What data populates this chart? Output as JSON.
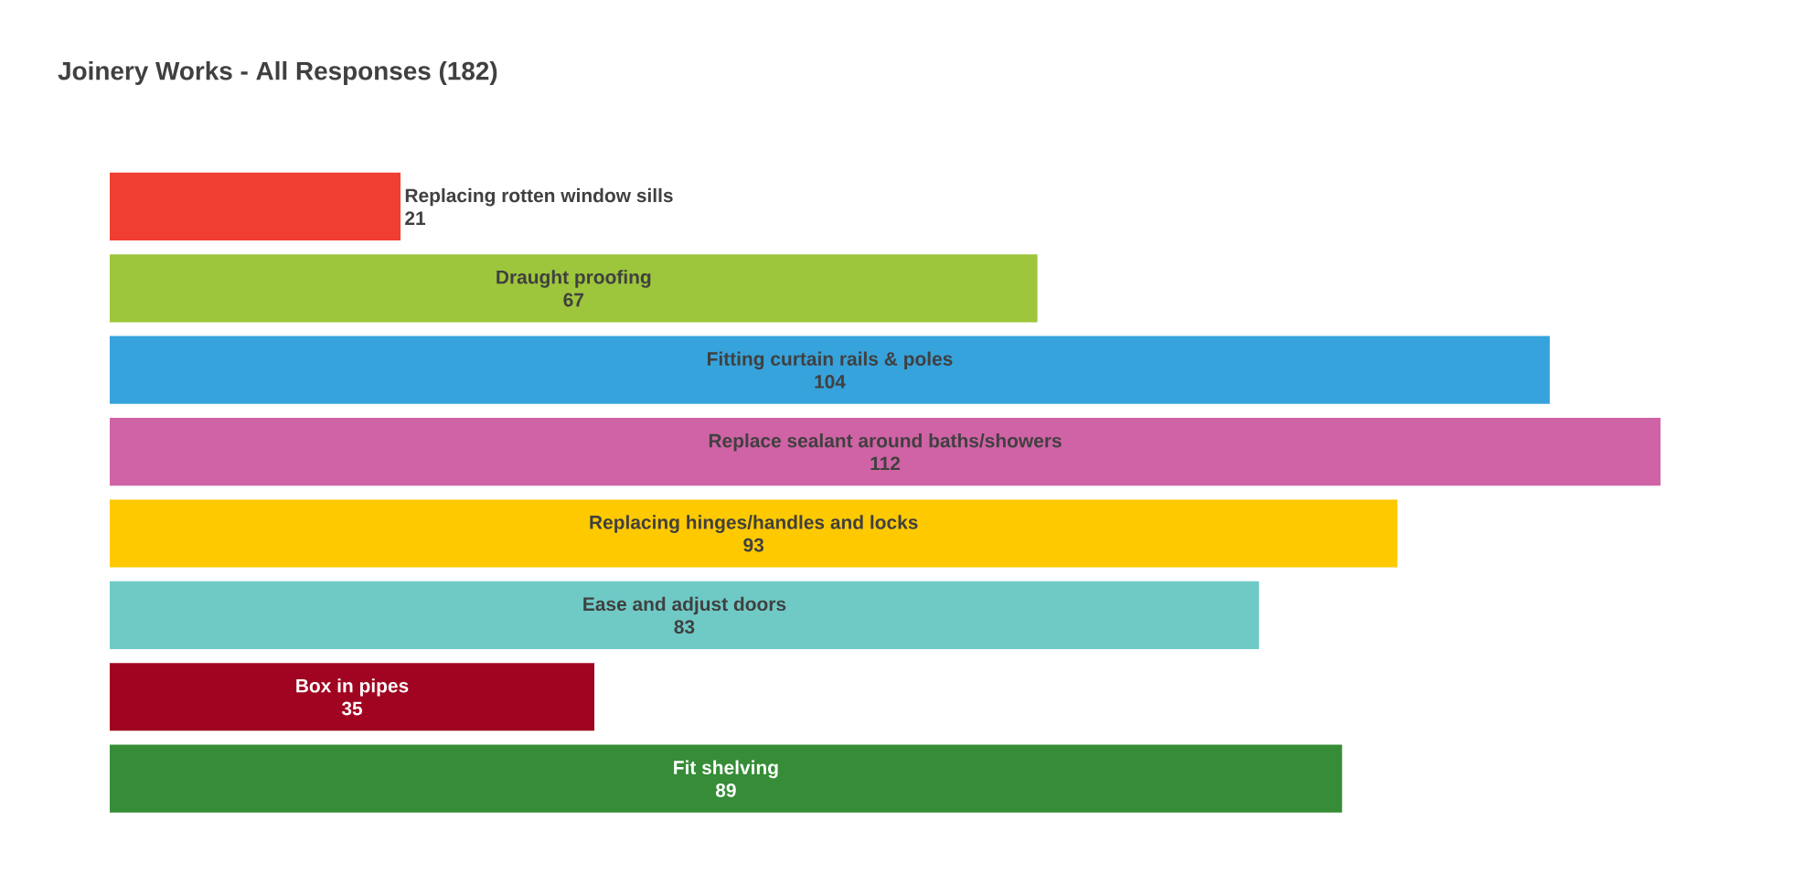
{
  "chart_data": {
    "type": "bar",
    "orientation": "horizontal",
    "title": "Joinery Works - All Responses (182)",
    "categories": [
      "Replacing rotten window sills",
      "Draught proofing",
      "Fitting curtain rails & poles",
      "Replace sealant around baths/showers",
      "Replacing hinges/handles and locks",
      "Ease and adjust doors",
      "Box in pipes",
      "Fit shelving"
    ],
    "values": [
      21,
      67,
      104,
      112,
      93,
      83,
      35,
      89
    ],
    "colors": [
      "#f03e32",
      "#9dc63c",
      "#36a3dc",
      "#d063a5",
      "#ffc900",
      "#6fcac6",
      "#a00420",
      "#368c37"
    ],
    "data_labels": true
  }
}
